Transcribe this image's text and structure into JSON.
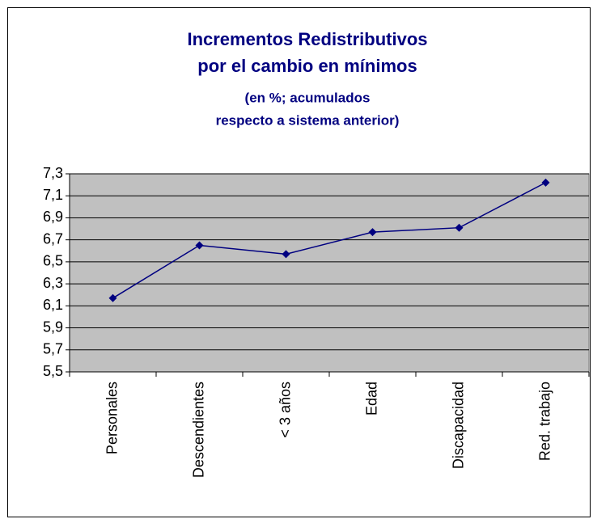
{
  "chart_data": {
    "type": "line",
    "title": [
      "Incrementos Redistributivos",
      "por el cambio en mínimos"
    ],
    "subtitle": [
      "(en %; acumulados",
      "respecto a sistema anterior)"
    ],
    "categories": [
      "Personales",
      "Descendientes",
      "< 3 años",
      "Edad",
      "Discapacidad",
      "Red. trabajo"
    ],
    "values": [
      6.17,
      6.65,
      6.57,
      6.77,
      6.81,
      7.22
    ],
    "color": "#000080",
    "ylim": [
      5.5,
      7.3
    ],
    "yticks": [
      {
        "value": 5.5,
        "label": "5,5"
      },
      {
        "value": 5.7,
        "label": "5,7"
      },
      {
        "value": 5.9,
        "label": "5,9"
      },
      {
        "value": 6.1,
        "label": "6,1"
      },
      {
        "value": 6.3,
        "label": "6,3"
      },
      {
        "value": 6.5,
        "label": "6,5"
      },
      {
        "value": 6.7,
        "label": "6,7"
      },
      {
        "value": 6.9,
        "label": "6,9"
      },
      {
        "value": 7.1,
        "label": "7,1"
      },
      {
        "value": 7.3,
        "label": "7,3"
      }
    ],
    "grid": true
  }
}
